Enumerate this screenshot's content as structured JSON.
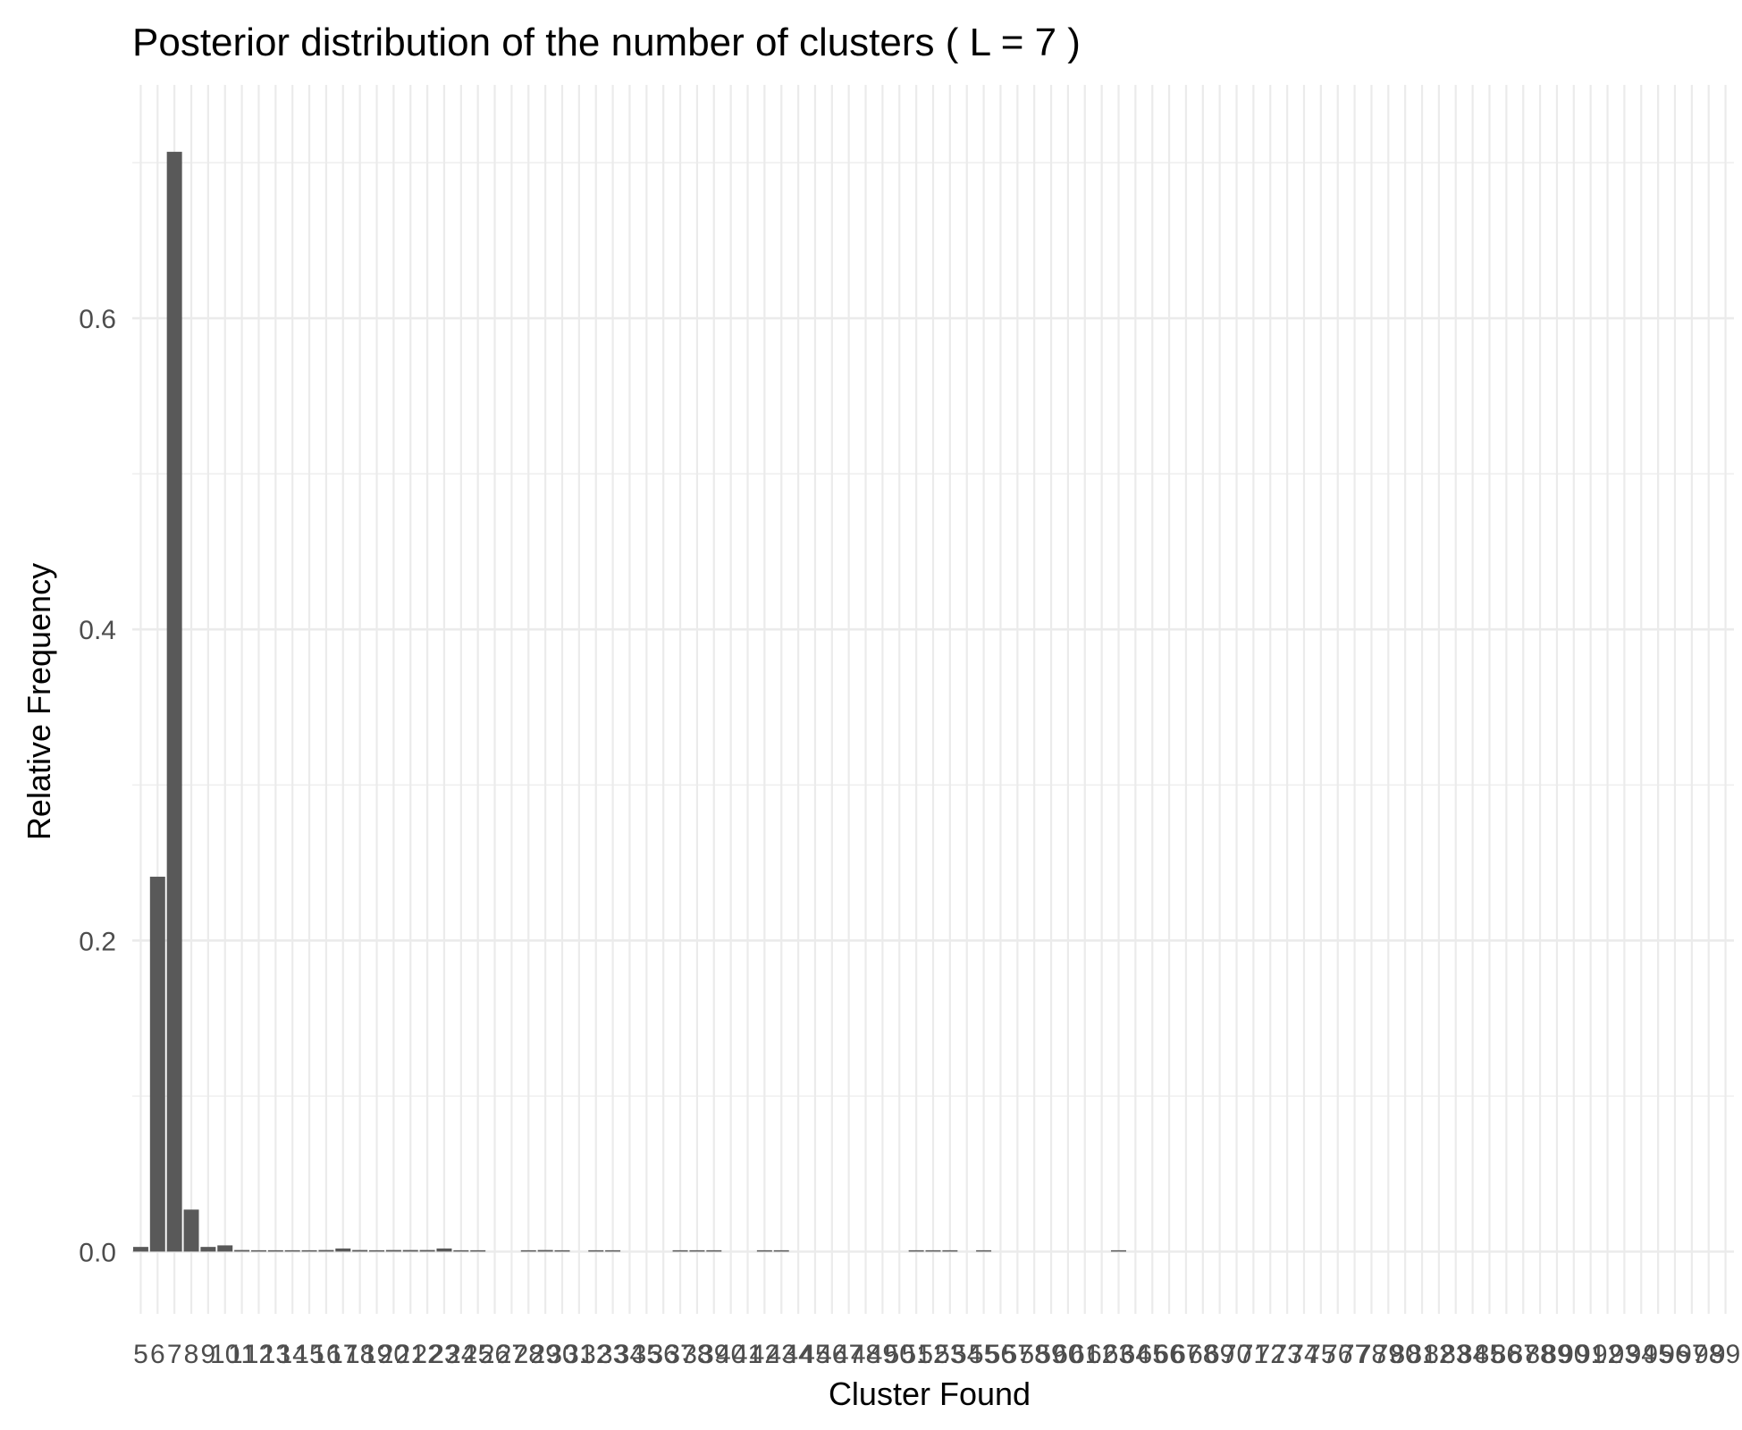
{
  "chart_data": {
    "type": "bar",
    "title": "Posterior distribution of the number of clusters ( L = 7 )",
    "xlabel": "Cluster Found",
    "ylabel": "Relative Frequency",
    "ylim": [
      -0.04,
      0.75
    ],
    "yticks": [
      0.0,
      0.2,
      0.4,
      0.6
    ],
    "ytick_labels": [
      "0.0",
      "0.2",
      "0.4",
      "0.6"
    ],
    "grid": true,
    "bar_color": "#595959",
    "grid_color": "#ebebeb",
    "categories": [
      5,
      6,
      7,
      8,
      9,
      10,
      11,
      12,
      13,
      14,
      15,
      16,
      17,
      18,
      19,
      20,
      21,
      22,
      23,
      24,
      25,
      26,
      27,
      28,
      29,
      30,
      31,
      32,
      33,
      34,
      35,
      36,
      37,
      38,
      39,
      40,
      41,
      42,
      43,
      44,
      45,
      46,
      47,
      48,
      49,
      50,
      51,
      52,
      53,
      54,
      55,
      56,
      57,
      58,
      59,
      60,
      61,
      62,
      63,
      64,
      65,
      66,
      67,
      68,
      69,
      70,
      71,
      72,
      73,
      74,
      75,
      76,
      77,
      78,
      79,
      80,
      81,
      82,
      83,
      84,
      85,
      86,
      87,
      88,
      89,
      90,
      91,
      92,
      93,
      94,
      95,
      96,
      97,
      98,
      99
    ],
    "values": [
      0.003,
      0.241,
      0.707,
      0.027,
      0.003,
      0.004,
      0.001,
      0.0005,
      0.0005,
      0.0005,
      0.0005,
      0.001,
      0.002,
      0.001,
      0.0005,
      0.001,
      0.001,
      0.001,
      0.002,
      0.0008,
      0.0005,
      0,
      0,
      0.0005,
      0.001,
      0.0005,
      0,
      0.0005,
      0.0005,
      0,
      0,
      0,
      0.0005,
      0.0005,
      0.0005,
      0,
      0,
      0.0005,
      0.0005,
      0,
      0,
      0,
      0,
      0,
      0,
      0,
      0.0005,
      0.0005,
      0.0005,
      0,
      0.0005,
      0,
      0,
      0,
      0,
      0,
      0,
      0,
      0.0005,
      0,
      0,
      0,
      0,
      0,
      0,
      0,
      0,
      0,
      0,
      0,
      0,
      0,
      0,
      0,
      0,
      0,
      0,
      0,
      0,
      0,
      0,
      0,
      0,
      0,
      0,
      0,
      0,
      0,
      0,
      0,
      0,
      0,
      0,
      0,
      0
    ]
  }
}
